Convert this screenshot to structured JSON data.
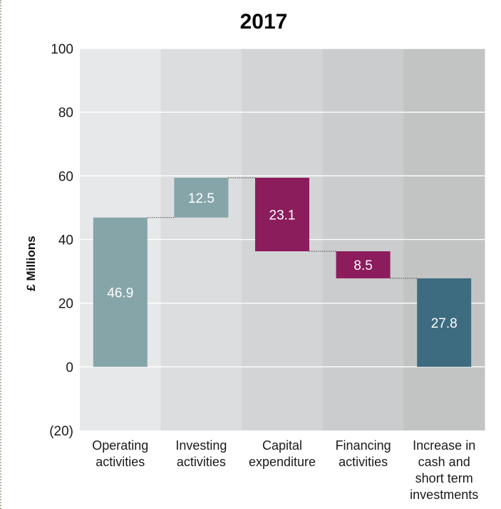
{
  "chart_data": {
    "type": "bar",
    "subtype": "waterfall",
    "title": "2017",
    "ylabel": "£ Millions",
    "xlabel": "",
    "ylim": [
      -20,
      100
    ],
    "yticks": [
      100,
      80,
      60,
      40,
      20,
      0,
      -20
    ],
    "ytick_labels": [
      "100",
      "80",
      "60",
      "40",
      "20",
      "0",
      "(20)"
    ],
    "grid": true,
    "categories": [
      [
        "Operating",
        "activities"
      ],
      [
        "Investing",
        "activities"
      ],
      [
        "Capital",
        "expenditure"
      ],
      [
        "Financing",
        "activities"
      ],
      [
        "Increase in",
        "cash and",
        "short term",
        "investments"
      ]
    ],
    "bars": [
      {
        "bottom": 0,
        "top": 46.9,
        "label": "46.9",
        "color": "#86a5a9"
      },
      {
        "bottom": 46.9,
        "top": 59.4,
        "label": "12.5",
        "color": "#86a5a9"
      },
      {
        "bottom": 36.3,
        "top": 59.4,
        "label": "23.1",
        "color": "#8c1d5d"
      },
      {
        "bottom": 27.8,
        "top": 36.3,
        "label": "8.5",
        "color": "#8c1d5d"
      },
      {
        "bottom": 0,
        "top": 27.8,
        "label": "27.8",
        "color": "#3d6b80"
      }
    ],
    "column_backgrounds": [
      "#e7e8ea",
      "#dcdddf",
      "#d3d4d6",
      "#cbcccd",
      "#c2c4c3"
    ],
    "connector_color": "#444444"
  }
}
